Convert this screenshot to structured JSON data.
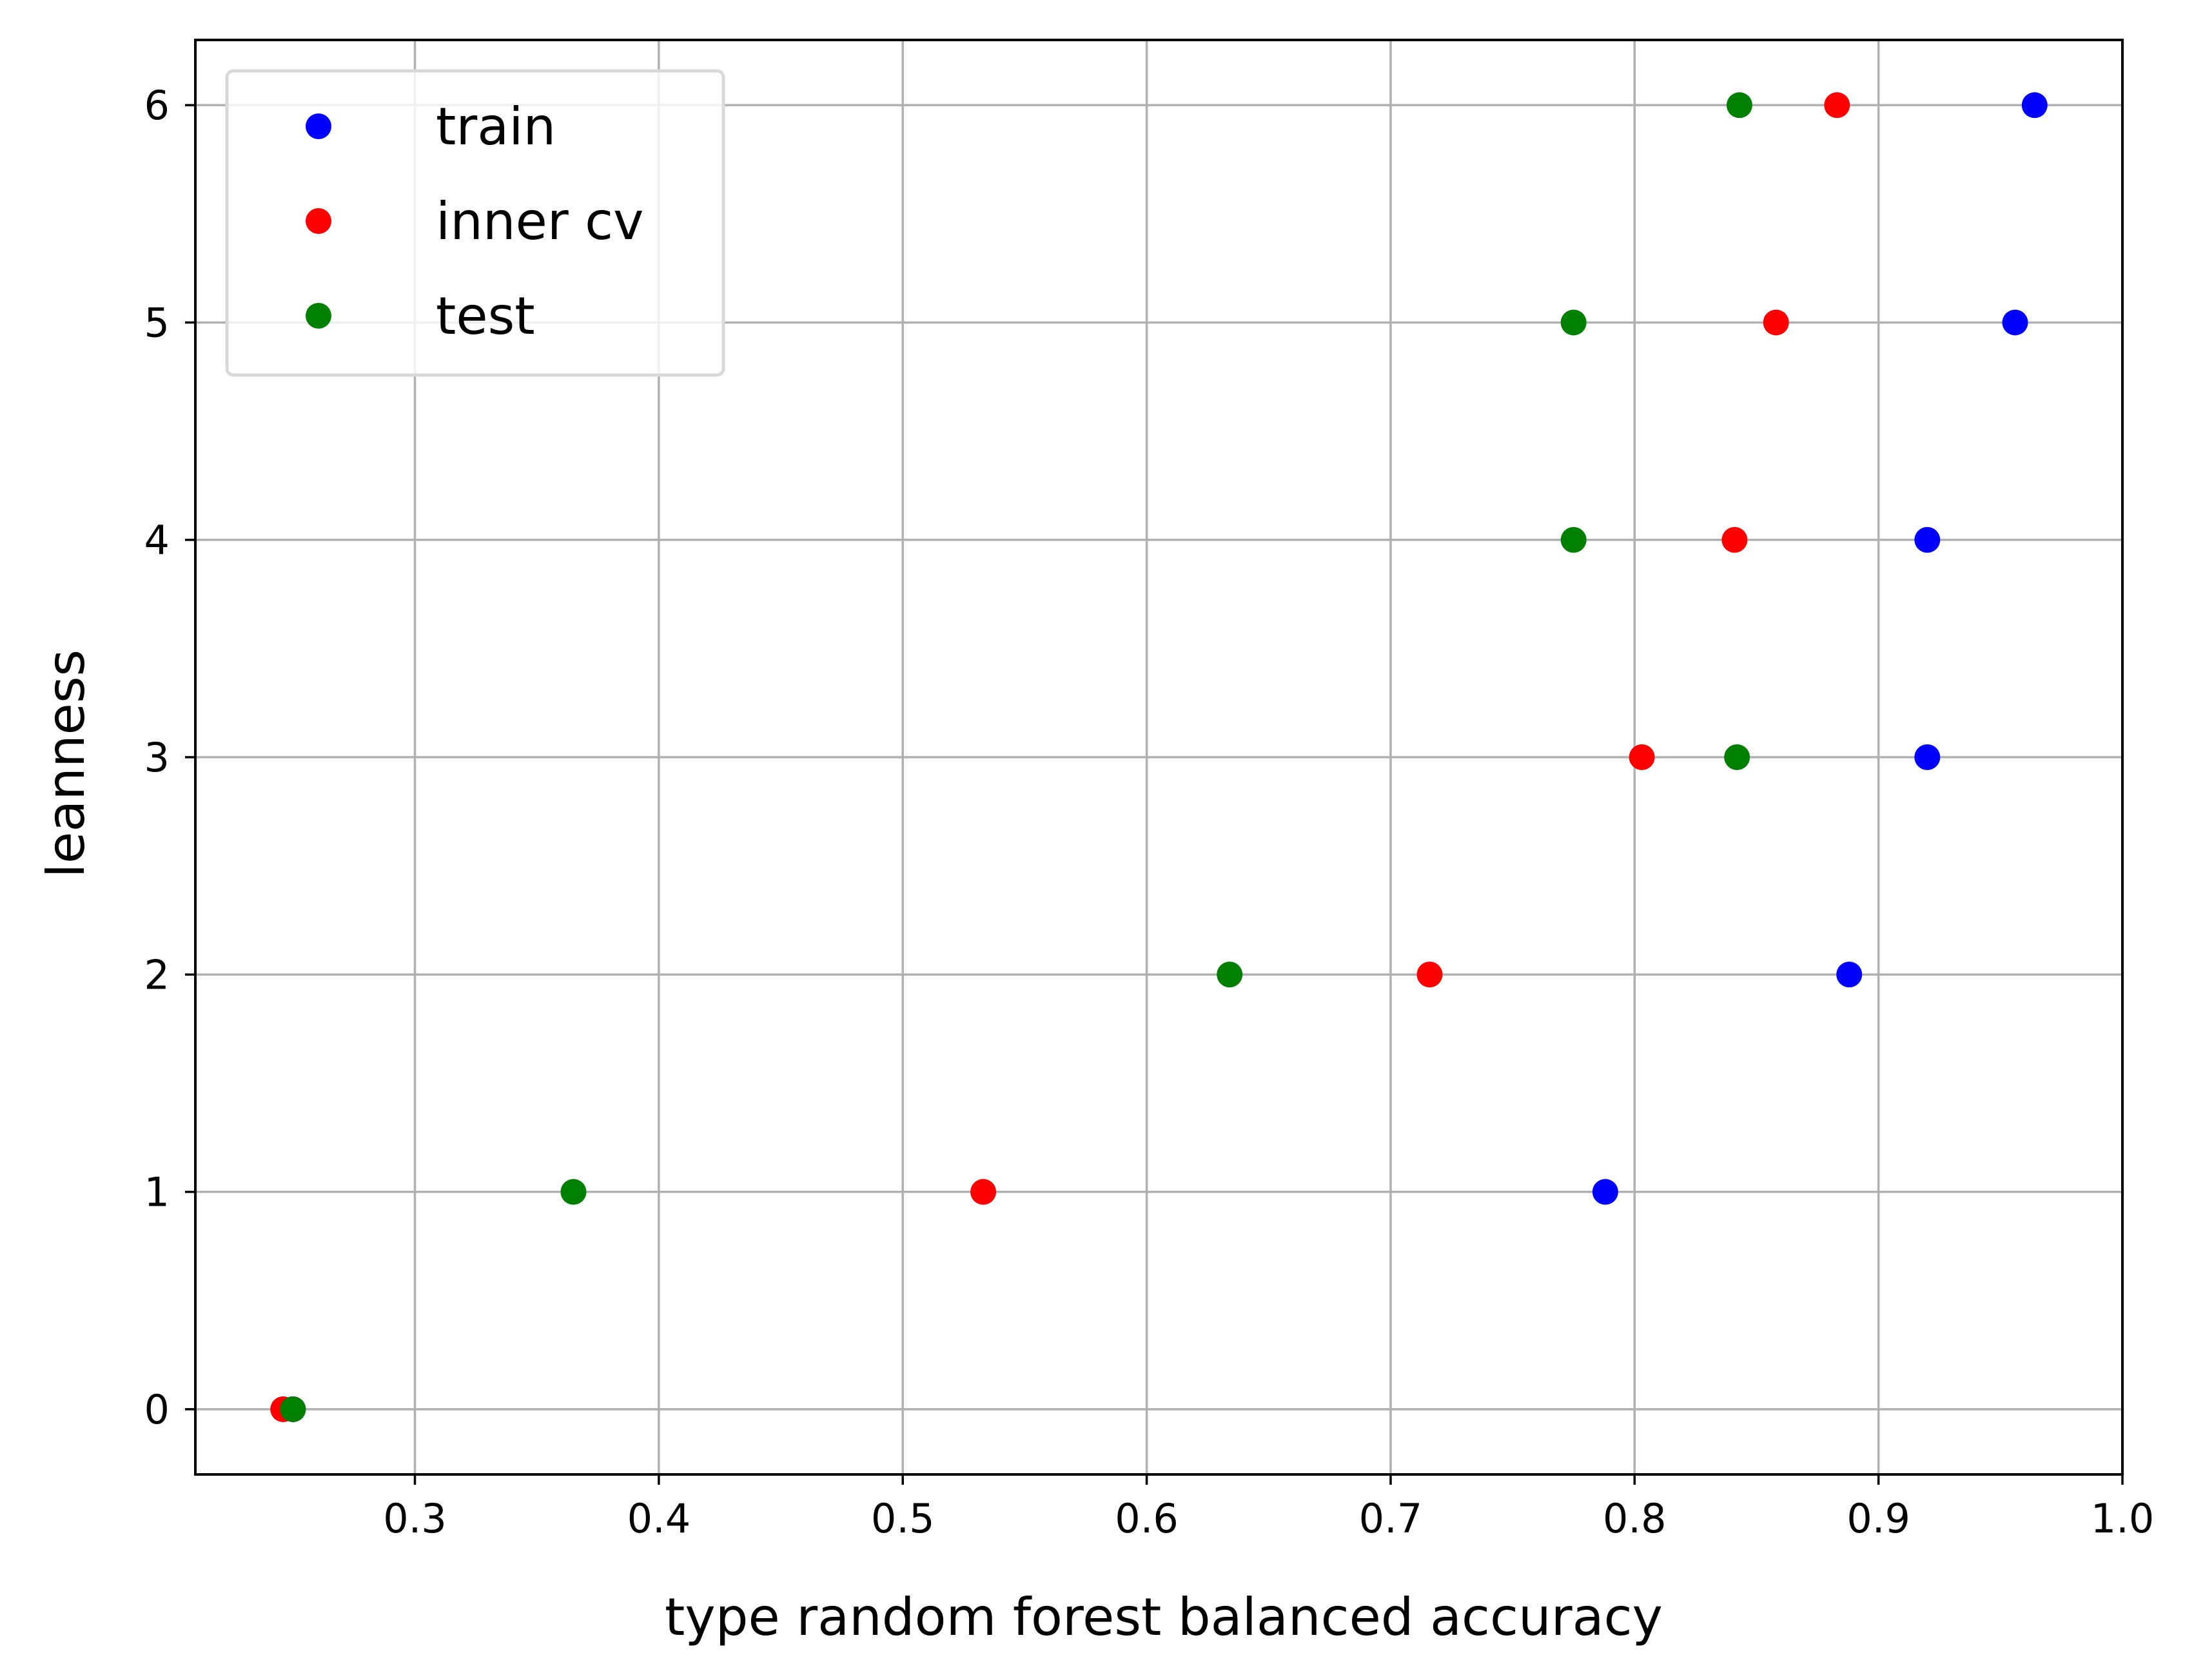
{
  "chart_data": {
    "type": "scatter",
    "title": "",
    "xlabel": "type random forest balanced accuracy",
    "ylabel": "leanness",
    "xlim": [
      0.21,
      1.0
    ],
    "ylim": [
      -0.3,
      6.3
    ],
    "xticks": [
      0.3,
      0.4,
      0.5,
      0.6,
      0.7,
      0.8,
      0.9,
      1.0
    ],
    "xtick_labels": [
      "0.3",
      "0.4",
      "0.5",
      "0.6",
      "0.7",
      "0.8",
      "0.9",
      "1.0"
    ],
    "yticks": [
      0,
      1,
      2,
      3,
      4,
      5,
      6
    ],
    "ytick_labels": [
      "0",
      "1",
      "2",
      "3",
      "4",
      "5",
      "6"
    ],
    "grid": true,
    "legend_position": "top-left",
    "series": [
      {
        "name": "train",
        "color": "#0000ff",
        "points": [
          {
            "x": 0.25,
            "y": 0
          },
          {
            "x": 0.788,
            "y": 1
          },
          {
            "x": 0.888,
            "y": 2
          },
          {
            "x": 0.92,
            "y": 3
          },
          {
            "x": 0.92,
            "y": 4
          },
          {
            "x": 0.956,
            "y": 5
          },
          {
            "x": 0.964,
            "y": 6
          }
        ]
      },
      {
        "name": "inner cv",
        "color": "#ff0000",
        "points": [
          {
            "x": 0.246,
            "y": 0
          },
          {
            "x": 0.533,
            "y": 1
          },
          {
            "x": 0.716,
            "y": 2
          },
          {
            "x": 0.803,
            "y": 3
          },
          {
            "x": 0.841,
            "y": 4
          },
          {
            "x": 0.858,
            "y": 5
          },
          {
            "x": 0.883,
            "y": 6
          }
        ]
      },
      {
        "name": "test",
        "color": "#008000",
        "points": [
          {
            "x": 0.25,
            "y": 0
          },
          {
            "x": 0.365,
            "y": 1
          },
          {
            "x": 0.634,
            "y": 2
          },
          {
            "x": 0.842,
            "y": 3
          },
          {
            "x": 0.775,
            "y": 4
          },
          {
            "x": 0.775,
            "y": 5
          },
          {
            "x": 0.843,
            "y": 6
          }
        ]
      }
    ]
  }
}
